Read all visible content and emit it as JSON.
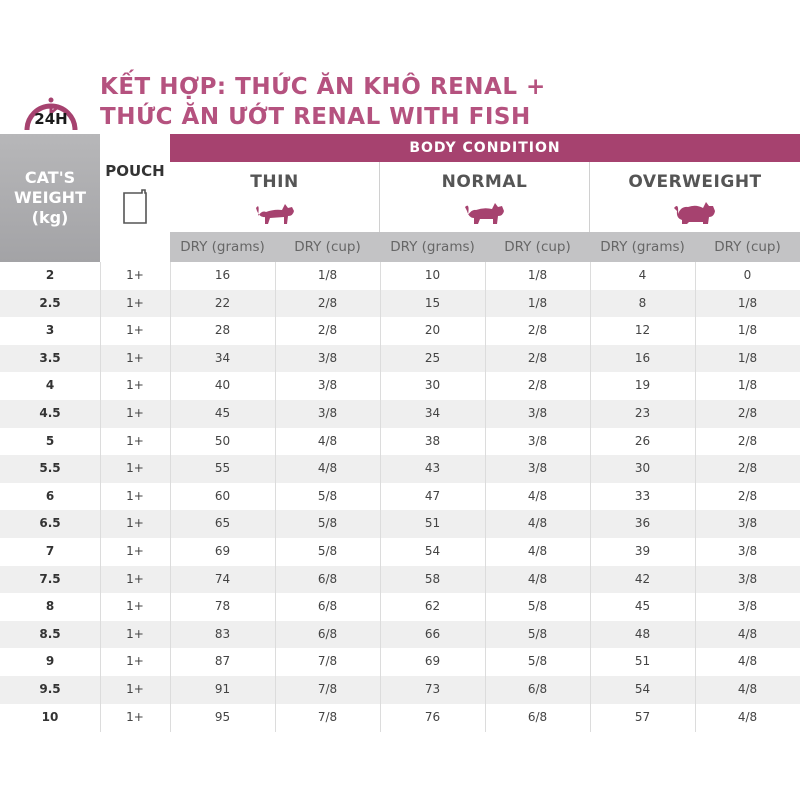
{
  "title": {
    "line1": "KẾT HỢP: THỨC ĂN KHÔ RENAL +",
    "line2": "THỨC ĂN ƯỚT RENAL WITH FISH"
  },
  "badge": "24H",
  "colors": {
    "accent": "#a6426f",
    "title": "#b5527f",
    "header_gray": "#a3a3a6"
  },
  "header": {
    "weight_line1": "CAT'S",
    "weight_line2": "WEIGHT",
    "weight_line3": "(kg)",
    "pouch": "POUCH",
    "body_condition": "BODY CONDITION",
    "conditions": [
      "THIN",
      "NORMAL",
      "OVERWEIGHT"
    ],
    "sub": [
      "DRY (grams)",
      "DRY (cup)",
      "DRY (grams)",
      "DRY (cup)",
      "DRY (grams)",
      "DRY (cup)"
    ]
  },
  "rows": [
    [
      "2",
      "1+",
      "16",
      "1/8",
      "10",
      "1/8",
      "4",
      "0"
    ],
    [
      "2.5",
      "1+",
      "22",
      "2/8",
      "15",
      "1/8",
      "8",
      "1/8"
    ],
    [
      "3",
      "1+",
      "28",
      "2/8",
      "20",
      "2/8",
      "12",
      "1/8"
    ],
    [
      "3.5",
      "1+",
      "34",
      "3/8",
      "25",
      "2/8",
      "16",
      "1/8"
    ],
    [
      "4",
      "1+",
      "40",
      "3/8",
      "30",
      "2/8",
      "19",
      "1/8"
    ],
    [
      "4.5",
      "1+",
      "45",
      "3/8",
      "34",
      "3/8",
      "23",
      "2/8"
    ],
    [
      "5",
      "1+",
      "50",
      "4/8",
      "38",
      "3/8",
      "26",
      "2/8"
    ],
    [
      "5.5",
      "1+",
      "55",
      "4/8",
      "43",
      "3/8",
      "30",
      "2/8"
    ],
    [
      "6",
      "1+",
      "60",
      "5/8",
      "47",
      "4/8",
      "33",
      "2/8"
    ],
    [
      "6.5",
      "1+",
      "65",
      "5/8",
      "51",
      "4/8",
      "36",
      "3/8"
    ],
    [
      "7",
      "1+",
      "69",
      "5/8",
      "54",
      "4/8",
      "39",
      "3/8"
    ],
    [
      "7.5",
      "1+",
      "74",
      "6/8",
      "58",
      "4/8",
      "42",
      "3/8"
    ],
    [
      "8",
      "1+",
      "78",
      "6/8",
      "62",
      "5/8",
      "45",
      "3/8"
    ],
    [
      "8.5",
      "1+",
      "83",
      "6/8",
      "66",
      "5/8",
      "48",
      "4/8"
    ],
    [
      "9",
      "1+",
      "87",
      "7/8",
      "69",
      "5/8",
      "51",
      "4/8"
    ],
    [
      "9.5",
      "1+",
      "91",
      "7/8",
      "73",
      "6/8",
      "54",
      "4/8"
    ],
    [
      "10",
      "1+",
      "95",
      "7/8",
      "76",
      "6/8",
      "57",
      "4/8"
    ]
  ]
}
